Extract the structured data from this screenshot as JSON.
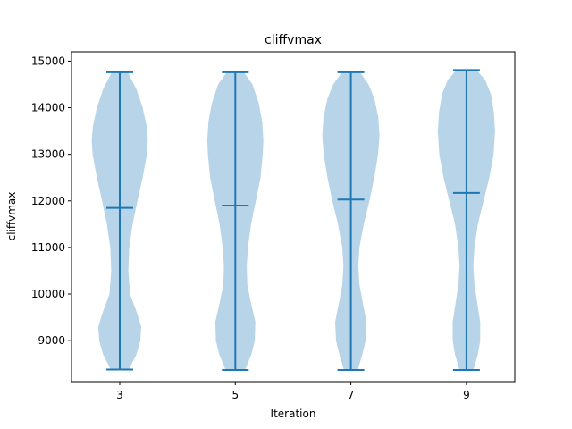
{
  "chart_data": {
    "type": "violin",
    "title": "cliffvmax",
    "xlabel": "Iteration",
    "ylabel": "cliffvmax",
    "categories": [
      "3",
      "5",
      "7",
      "9"
    ],
    "ylim": [
      8120,
      15200
    ],
    "yticks": [
      9000,
      10000,
      11000,
      12000,
      13000,
      14000,
      15000
    ],
    "color": "#1f77b4",
    "fill_color": "#b8d4e8",
    "grid": false,
    "violins": [
      {
        "label": "3",
        "min": 8380,
        "max": 14760,
        "mean": 11850,
        "density": [
          [
            8380,
            0.32
          ],
          [
            8700,
            0.58
          ],
          [
            9000,
            0.72
          ],
          [
            9300,
            0.75
          ],
          [
            9600,
            0.6
          ],
          [
            10000,
            0.36
          ],
          [
            10500,
            0.3
          ],
          [
            11000,
            0.33
          ],
          [
            11500,
            0.45
          ],
          [
            12000,
            0.62
          ],
          [
            12500,
            0.8
          ],
          [
            13000,
            0.95
          ],
          [
            13300,
            0.98
          ],
          [
            13600,
            0.94
          ],
          [
            14000,
            0.8
          ],
          [
            14400,
            0.58
          ],
          [
            14760,
            0.28
          ]
        ]
      },
      {
        "label": "5",
        "min": 8370,
        "max": 14760,
        "mean": 11900,
        "density": [
          [
            8370,
            0.34
          ],
          [
            8700,
            0.56
          ],
          [
            9000,
            0.68
          ],
          [
            9400,
            0.7
          ],
          [
            9800,
            0.55
          ],
          [
            10200,
            0.42
          ],
          [
            10600,
            0.4
          ],
          [
            11000,
            0.44
          ],
          [
            11500,
            0.55
          ],
          [
            12000,
            0.72
          ],
          [
            12500,
            0.88
          ],
          [
            13000,
            0.96
          ],
          [
            13300,
            0.98
          ],
          [
            13700,
            0.94
          ],
          [
            14100,
            0.82
          ],
          [
            14500,
            0.6
          ],
          [
            14760,
            0.3
          ]
        ]
      },
      {
        "label": "7",
        "min": 8370,
        "max": 14760,
        "mean": 12030,
        "density": [
          [
            8370,
            0.24
          ],
          [
            8700,
            0.4
          ],
          [
            9000,
            0.52
          ],
          [
            9400,
            0.55
          ],
          [
            9800,
            0.42
          ],
          [
            10200,
            0.3
          ],
          [
            10600,
            0.26
          ],
          [
            11000,
            0.3
          ],
          [
            11500,
            0.45
          ],
          [
            12000,
            0.65
          ],
          [
            12500,
            0.82
          ],
          [
            13000,
            0.95
          ],
          [
            13400,
            1.0
          ],
          [
            13800,
            0.96
          ],
          [
            14200,
            0.82
          ],
          [
            14500,
            0.62
          ],
          [
            14760,
            0.32
          ]
        ]
      },
      {
        "label": "9",
        "min": 8370,
        "max": 14810,
        "mean": 12170,
        "density": [
          [
            8370,
            0.24
          ],
          [
            8700,
            0.4
          ],
          [
            9000,
            0.48
          ],
          [
            9400,
            0.48
          ],
          [
            9800,
            0.38
          ],
          [
            10200,
            0.28
          ],
          [
            10600,
            0.24
          ],
          [
            11000,
            0.28
          ],
          [
            11500,
            0.4
          ],
          [
            12000,
            0.6
          ],
          [
            12500,
            0.8
          ],
          [
            13000,
            0.95
          ],
          [
            13500,
            1.0
          ],
          [
            13900,
            0.96
          ],
          [
            14300,
            0.85
          ],
          [
            14600,
            0.65
          ],
          [
            14810,
            0.35
          ]
        ]
      }
    ]
  }
}
